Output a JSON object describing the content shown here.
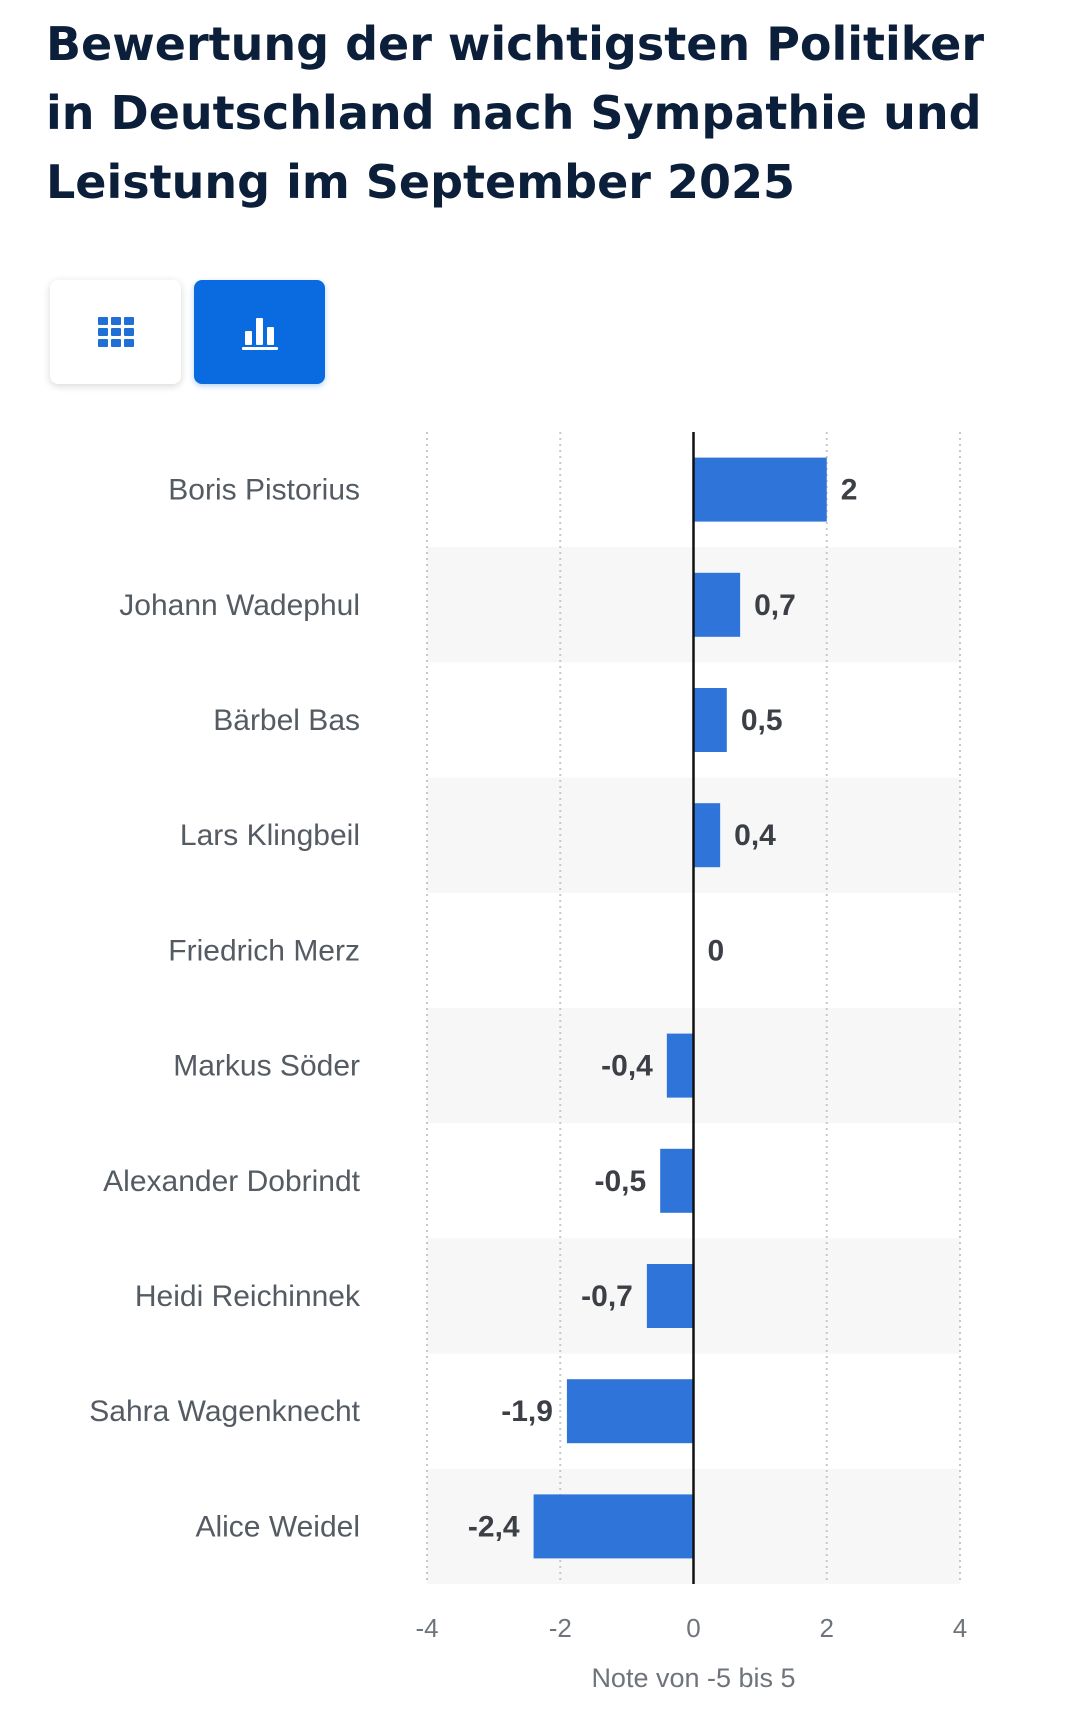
{
  "title": "Bewertung der wichtigsten Politiker in Deutschland nach Sympathie und Leistung im September 2025",
  "view_toggle": {
    "table_icon": "table-grid-icon",
    "chart_icon": "bar-chart-icon",
    "active": "chart"
  },
  "colors": {
    "bar": "#2f74d9",
    "accent": "#0a6be0",
    "title": "#0c1f3a",
    "band": "#f7f7f7"
  },
  "chart_data": {
    "type": "bar",
    "orientation": "horizontal",
    "categories": [
      "Boris Pistorius",
      "Johann Wadephul",
      "Bärbel Bas",
      "Lars Klingbeil",
      "Friedrich Merz",
      "Markus Söder",
      "Alexander Dobrindt",
      "Heidi Reichinnek",
      "Sahra Wagenknecht",
      "Alice Weidel"
    ],
    "values": [
      2,
      0.7,
      0.5,
      0.4,
      0,
      -0.4,
      -0.5,
      -0.7,
      -1.9,
      -2.4
    ],
    "value_labels": [
      "2",
      "0,7",
      "0,5",
      "0,4",
      "0",
      "-0,4",
      "-0,5",
      "-0,7",
      "-1,9",
      "-2,4"
    ],
    "xlim": [
      -4,
      4
    ],
    "xticks": [
      -4,
      -2,
      0,
      2,
      4
    ],
    "xtick_labels": [
      "-4",
      "-2",
      "0",
      "2",
      "4"
    ],
    "xlabel": "Note von -5 bis 5",
    "ylabel": "",
    "grid": true,
    "alternating_row_bands": true
  }
}
